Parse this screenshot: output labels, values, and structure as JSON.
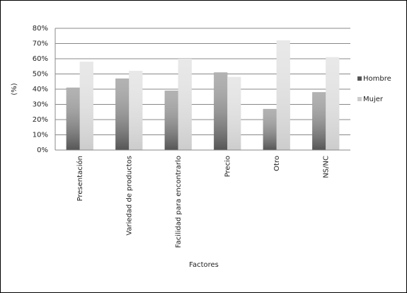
{
  "chart_data": {
    "type": "bar",
    "x_label": "Factores",
    "y_label": "(%)",
    "categories": [
      "Presentación",
      "Variedad de productos",
      "Facilidad para encontrarlo",
      "Precio",
      "Otro",
      "NS/NC"
    ],
    "series": [
      {
        "name": "Hombre",
        "color": "#555555",
        "values": [
          41,
          47,
          39,
          51,
          27,
          38
        ]
      },
      {
        "name": "Mujer",
        "color": "#cccccc",
        "values": [
          58,
          52,
          60,
          48,
          72,
          61
        ]
      }
    ],
    "ylim": [
      0,
      80
    ],
    "yticks": [
      {
        "value": 0,
        "label": "0%"
      },
      {
        "value": 10,
        "label": "10%"
      },
      {
        "value": 20,
        "label": "20%"
      },
      {
        "value": 30,
        "label": "30%"
      },
      {
        "value": 40,
        "label": "40%"
      },
      {
        "value": 50,
        "label": "50%"
      },
      {
        "value": 60,
        "label": "60%"
      },
      {
        "value": 70,
        "label": "70%"
      },
      {
        "value": 80,
        "label": "80%"
      }
    ],
    "grid": true,
    "legend": "right"
  }
}
